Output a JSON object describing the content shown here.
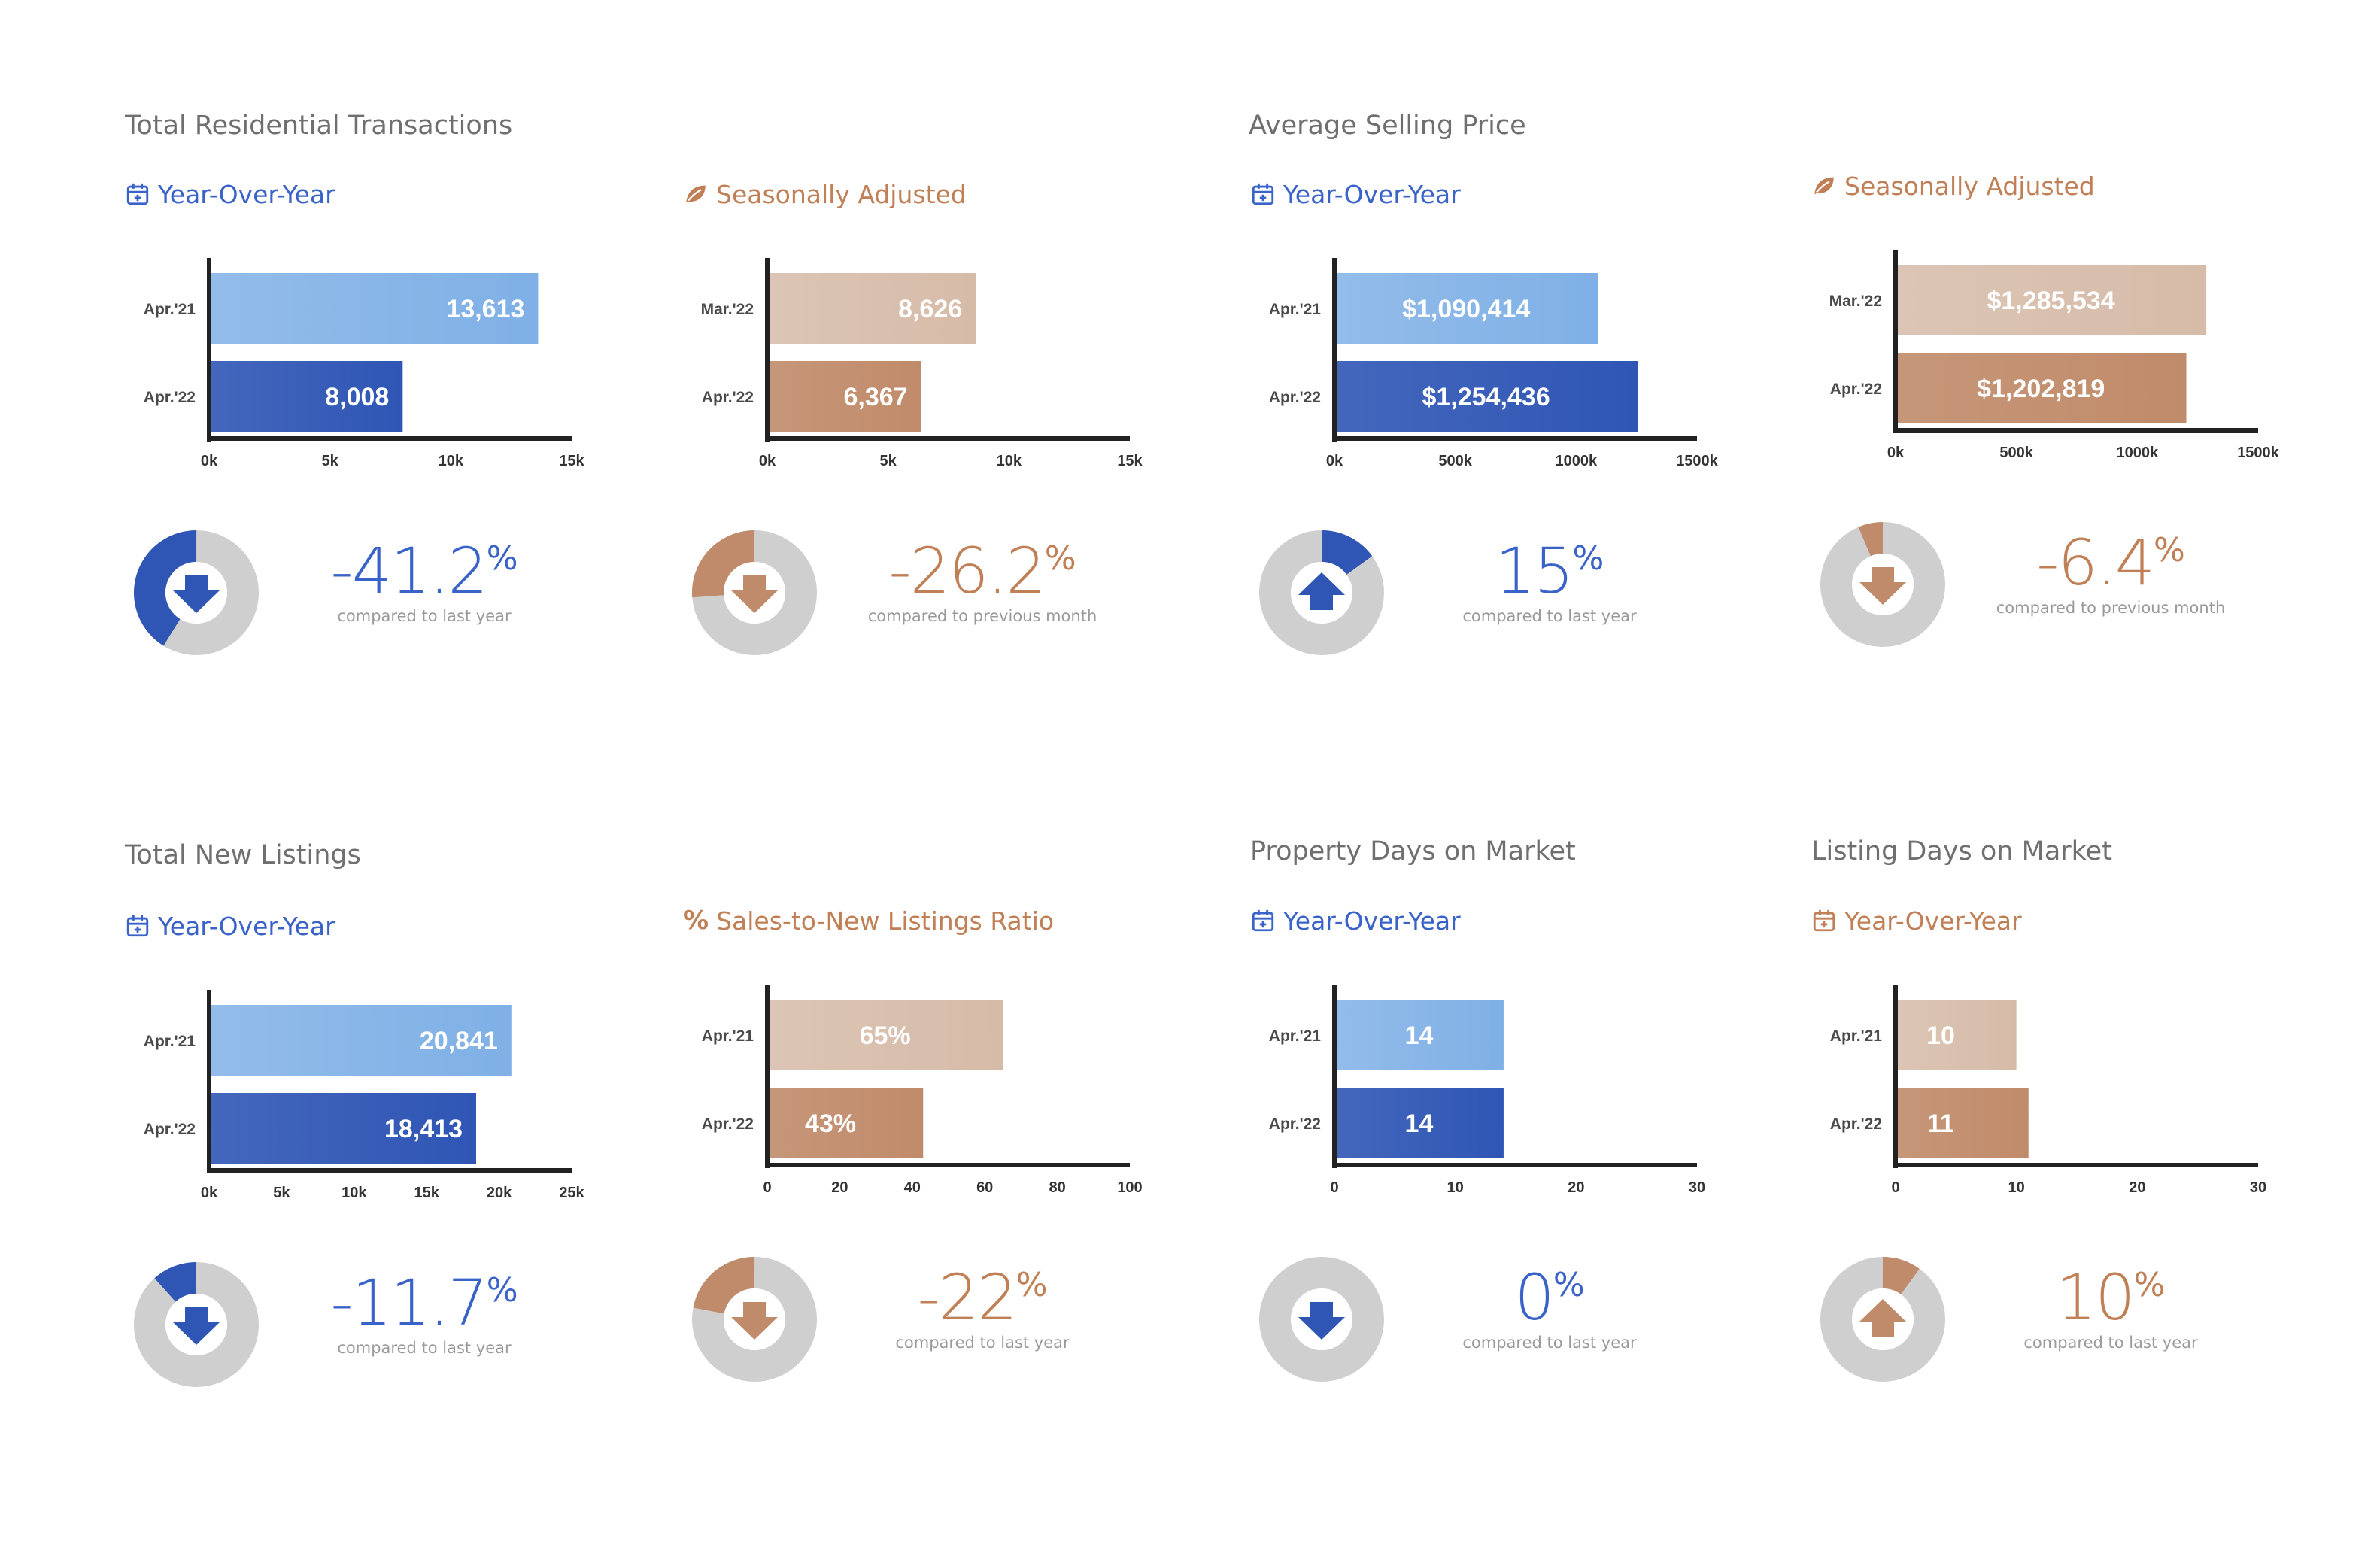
{
  "colors": {
    "blue_light": "#7fb0e6",
    "blue_dark": "#2f56b5",
    "tan_light": "#d6bba8",
    "tan_dark": "#c08b6a",
    "blue_text": "#3a63c9",
    "tan_text": "#c07f55",
    "donut_gray": "#cfcfcf",
    "axis": "#222222"
  },
  "sections": [
    {
      "id": "total-residential-transactions",
      "title": "Total Residential Transactions"
    },
    {
      "id": "average-selling-price",
      "title": "Average Selling Price"
    },
    {
      "id": "total-new-listings",
      "title": "Total New Listings"
    },
    {
      "id": "property-days-on-market",
      "title": "Property Days on Market"
    },
    {
      "id": "listing-days-on-market",
      "title": "Listing Days on Market"
    }
  ],
  "panels": [
    {
      "subtitle": "Year-Over-Year",
      "icon": "calendar-plus-icon",
      "theme": "blue",
      "change": {
        "value": "-41.2",
        "unit": "%",
        "caption": "compared to last year",
        "direction": "down",
        "fraction": 0.412
      }
    },
    {
      "subtitle": "Seasonally Adjusted",
      "icon": "leaf-icon",
      "theme": "tan",
      "change": {
        "value": "-26.2",
        "unit": "%",
        "caption": "compared to previous month",
        "direction": "down",
        "fraction": 0.262
      }
    },
    {
      "subtitle": "Year-Over-Year",
      "icon": "calendar-plus-icon",
      "theme": "blue",
      "change": {
        "value": "15",
        "unit": "%",
        "caption": "compared to last year",
        "direction": "up",
        "fraction": 0.15
      }
    },
    {
      "subtitle": "Seasonally Adjusted",
      "icon": "leaf-icon",
      "theme": "tan",
      "change": {
        "value": "-6.4",
        "unit": "%",
        "caption": "compared to previous month",
        "direction": "down",
        "fraction": 0.064
      }
    },
    {
      "subtitle": "Year-Over-Year",
      "icon": "calendar-plus-icon",
      "theme": "blue",
      "change": {
        "value": "-11.7",
        "unit": "%",
        "caption": "compared to last year",
        "direction": "down",
        "fraction": 0.117
      }
    },
    {
      "subtitle": "Sales-to-New Listings Ratio",
      "icon": "percent-icon",
      "theme": "tan",
      "change": {
        "value": "-22",
        "unit": "%",
        "caption": "compared to last year",
        "direction": "down",
        "fraction": 0.22
      }
    },
    {
      "subtitle": "Year-Over-Year",
      "icon": "calendar-plus-icon",
      "theme": "blue",
      "change": {
        "value": "0",
        "unit": "%",
        "caption": "compared to last year",
        "direction": "down",
        "fraction": 0
      }
    },
    {
      "subtitle": "Year-Over-Year",
      "icon": "calendar-plus-icon",
      "theme": "tan",
      "change": {
        "value": "10",
        "unit": "%",
        "caption": "compared to last year",
        "direction": "up",
        "fraction": 0.1
      }
    }
  ],
  "chart_data": [
    {
      "type": "bar",
      "orientation": "horizontal",
      "categories": [
        "Apr.'21",
        "Apr.'22"
      ],
      "values": [
        13613,
        8008
      ],
      "labels": [
        "13,613",
        "8,008"
      ],
      "xlim": [
        0,
        15000
      ],
      "ticks": [
        0,
        5000,
        10000,
        15000
      ],
      "tick_labels": [
        "0k",
        "5k",
        "10k",
        "15k"
      ]
    },
    {
      "type": "bar",
      "orientation": "horizontal",
      "categories": [
        "Mar.'22",
        "Apr.'22"
      ],
      "values": [
        8626,
        6367
      ],
      "labels": [
        "8,626",
        "6,367"
      ],
      "xlim": [
        0,
        15000
      ],
      "ticks": [
        0,
        5000,
        10000,
        15000
      ],
      "tick_labels": [
        "0k",
        "5k",
        "10k",
        "15k"
      ]
    },
    {
      "type": "bar",
      "orientation": "horizontal",
      "categories": [
        "Apr.'21",
        "Apr.'22"
      ],
      "values": [
        1090414,
        1254436
      ],
      "labels": [
        "$1,090,414",
        "$1,254,436"
      ],
      "xlim": [
        0,
        1500000
      ],
      "ticks": [
        0,
        500000,
        1000000,
        1500000
      ],
      "tick_labels": [
        "0k",
        "500k",
        "1000k",
        "1500k"
      ]
    },
    {
      "type": "bar",
      "orientation": "horizontal",
      "categories": [
        "Mar.'22",
        "Apr.'22"
      ],
      "values": [
        1285534,
        1202819
      ],
      "labels": [
        "$1,285,534",
        "$1,202,819"
      ],
      "xlim": [
        0,
        1500000
      ],
      "ticks": [
        0,
        500000,
        1000000,
        1500000
      ],
      "tick_labels": [
        "0k",
        "500k",
        "1000k",
        "1500k"
      ]
    },
    {
      "type": "bar",
      "orientation": "horizontal",
      "categories": [
        "Apr.'21",
        "Apr.'22"
      ],
      "values": [
        20841,
        18413
      ],
      "labels": [
        "20,841",
        "18,413"
      ],
      "xlim": [
        0,
        25000
      ],
      "ticks": [
        0,
        5000,
        10000,
        15000,
        20000,
        25000
      ],
      "tick_labels": [
        "0k",
        "5k",
        "10k",
        "15k",
        "20k",
        "25k"
      ]
    },
    {
      "type": "bar",
      "orientation": "horizontal",
      "categories": [
        "Apr.'21",
        "Apr.'22"
      ],
      "values": [
        65,
        43
      ],
      "labels": [
        "65%",
        "43%"
      ],
      "xlim": [
        0,
        100
      ],
      "ticks": [
        0,
        20,
        40,
        60,
        80,
        100
      ],
      "tick_labels": [
        "0",
        "20",
        "40",
        "60",
        "80",
        "100"
      ]
    },
    {
      "type": "bar",
      "orientation": "horizontal",
      "categories": [
        "Apr.'21",
        "Apr.'22"
      ],
      "values": [
        14,
        14
      ],
      "labels": [
        "14",
        "14"
      ],
      "xlim": [
        0,
        30
      ],
      "ticks": [
        0,
        10,
        20,
        30
      ],
      "tick_labels": [
        "0",
        "10",
        "20",
        "30"
      ]
    },
    {
      "type": "bar",
      "orientation": "horizontal",
      "categories": [
        "Apr.'21",
        "Apr.'22"
      ],
      "values": [
        10,
        11
      ],
      "labels": [
        "10",
        "11"
      ],
      "xlim": [
        0,
        30
      ],
      "ticks": [
        0,
        10,
        20,
        30
      ],
      "tick_labels": [
        "0",
        "10",
        "20",
        "30"
      ]
    }
  ]
}
